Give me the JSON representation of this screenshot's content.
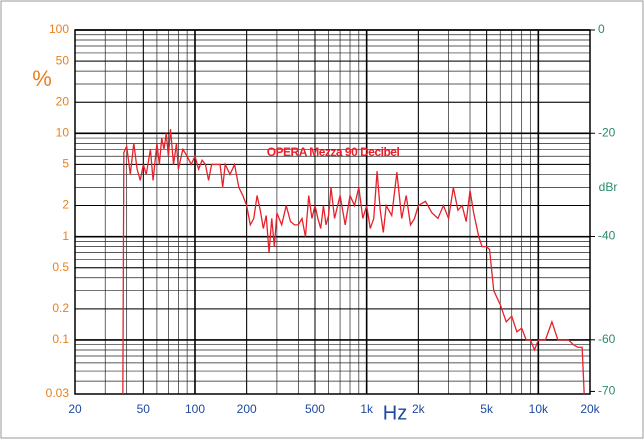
{
  "chart_data": {
    "type": "line",
    "annotation": "OPERA Mezza 90 Decibel",
    "ylabel": "%",
    "xlabel": "Hz",
    "y2label": "dBr",
    "xscale": "log",
    "yscale": "log",
    "grid": true,
    "xlim": [
      20,
      20000
    ],
    "ylim": [
      0.03,
      100
    ],
    "y2lim": [
      -70.5,
      0
    ],
    "xticks": [
      20,
      50,
      100,
      200,
      500,
      {
        "value": 1000,
        "label": "1k"
      },
      {
        "value": 2000,
        "label": "2k"
      },
      {
        "value": 5000,
        "label": "5k"
      },
      {
        "value": 10000,
        "label": "10k"
      },
      {
        "value": 20000,
        "label": "20k"
      }
    ],
    "yticks": [
      100,
      50,
      20,
      10,
      5,
      2,
      1,
      0.5,
      0.2,
      0.1,
      0.03
    ],
    "y2ticks": [
      0,
      -20,
      -40,
      -60,
      -70
    ],
    "x": [
      38,
      38.5,
      40,
      42,
      44,
      46,
      48,
      50,
      52,
      55,
      57,
      60,
      62,
      64,
      66,
      68,
      70,
      72,
      75,
      78,
      80,
      85,
      90,
      95,
      100,
      105,
      110,
      115,
      120,
      125,
      130,
      140,
      145,
      150,
      160,
      170,
      180,
      190,
      200,
      210,
      220,
      230,
      240,
      250,
      260,
      270,
      280,
      290,
      300,
      320,
      340,
      360,
      380,
      400,
      420,
      440,
      460,
      480,
      500,
      520,
      540,
      560,
      580,
      600,
      620,
      650,
      700,
      750,
      800,
      850,
      900,
      950,
      1000,
      1050,
      1100,
      1150,
      1200,
      1250,
      1300,
      1400,
      1500,
      1600,
      1700,
      1800,
      1900,
      2000,
      2200,
      2400,
      2600,
      2800,
      3000,
      3200,
      3400,
      3600,
      3800,
      4000,
      4200,
      4500,
      4700,
      5000,
      5200,
      5500,
      6000,
      6500,
      7000,
      7500,
      8000,
      8500,
      9000,
      9500,
      10000,
      11000,
      12000,
      13000,
      14000,
      15000,
      16000,
      17000,
      18000,
      18500
    ],
    "series": [
      {
        "color": "#e8202a",
        "values": [
          0.03,
          6.5,
          7.5,
          4,
          8,
          4.5,
          3.5,
          5,
          4,
          7,
          3.5,
          8,
          5,
          9,
          7,
          10,
          6,
          11,
          5,
          8,
          4.5,
          7,
          6,
          5,
          6,
          4.5,
          5.5,
          5,
          3.5,
          5,
          5,
          5,
          3,
          5,
          4,
          5,
          3,
          2.5,
          2,
          1.3,
          1.5,
          2.5,
          1.8,
          1.2,
          1.6,
          0.7,
          1.5,
          0.8,
          1.7,
          1.3,
          2,
          1.4,
          1.3,
          1.3,
          1.5,
          1,
          2.5,
          1.5,
          2,
          1.5,
          1.2,
          2,
          1.3,
          1.6,
          3,
          1.5,
          2.5,
          1.3,
          2.5,
          2,
          3,
          1.5,
          2,
          1.2,
          1.5,
          4.3,
          1.8,
          1.1,
          2,
          1.6,
          4.2,
          1.5,
          2.5,
          1.3,
          1.5,
          2,
          2.2,
          1.7,
          1.5,
          2,
          1.5,
          3,
          1.8,
          2,
          1.4,
          2.8,
          1.7,
          1,
          0.8,
          0.8,
          0.75,
          0.3,
          0.22,
          0.15,
          0.17,
          0.12,
          0.13,
          0.1,
          0.1,
          0.08,
          0.1,
          0.1,
          0.15,
          0.1,
          0.1,
          0.1,
          0.09,
          0.085,
          0.085,
          0.03
        ]
      }
    ]
  }
}
